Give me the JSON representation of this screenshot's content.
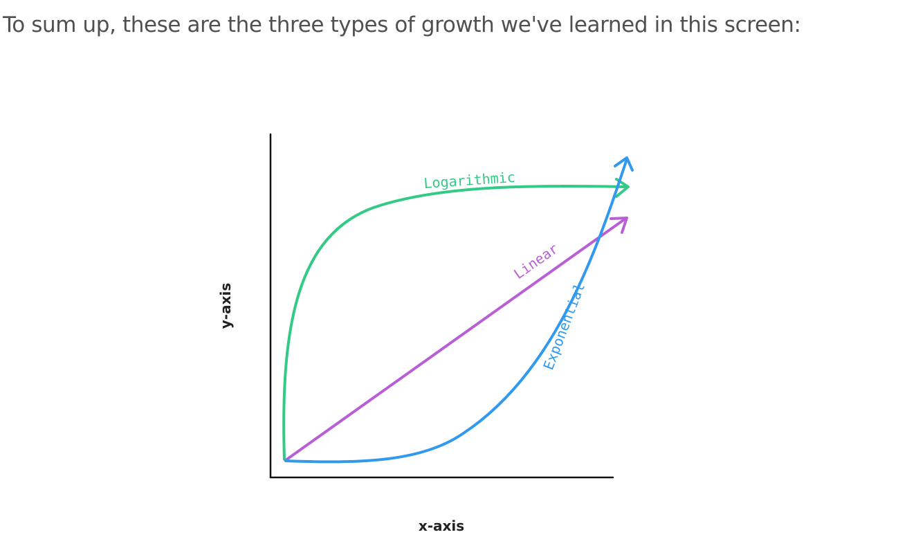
{
  "intro_text": "To sum up, these are the three types of growth we've learned in this screen:",
  "diagram": {
    "x_axis_label": "x-axis",
    "y_axis_label": "y-axis",
    "curves": {
      "logarithmic": {
        "label": "Logarithmic",
        "color": "#33c986"
      },
      "linear": {
        "label": "Linear",
        "color": "#b85fd6"
      },
      "exponential": {
        "label": "Exponential",
        "color": "#3199ee"
      }
    },
    "axis_color": "#111111"
  }
}
